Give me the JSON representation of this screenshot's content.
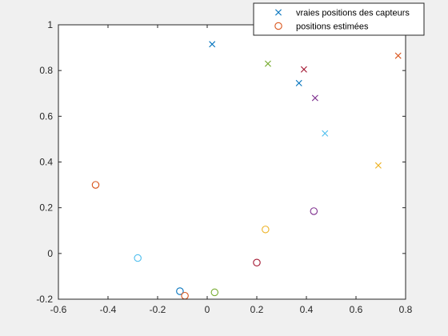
{
  "chart_data": {
    "type": "scatter",
    "title": "",
    "xlabel": "",
    "ylabel": "",
    "xlim": [
      -0.6,
      0.8
    ],
    "ylim": [
      -0.2,
      1
    ],
    "xticks": [
      "-0.6",
      "-0.4",
      "-0.2",
      "0",
      "0.2",
      "0.4",
      "0.6",
      "0.8"
    ],
    "yticks": [
      "-0.2",
      "0",
      "0.2",
      "0.4",
      "0.6",
      "0.8",
      "1"
    ],
    "grid": false,
    "legend_position": "top-right",
    "series": [
      {
        "name": "vraies positions des capteurs",
        "marker": "x",
        "points": [
          {
            "x": 0.02,
            "y": 0.915,
            "color": "#0072bd"
          },
          {
            "x": 0.77,
            "y": 0.865,
            "color": "#d95319"
          },
          {
            "x": 0.69,
            "y": 0.385,
            "color": "#edb120"
          },
          {
            "x": 0.435,
            "y": 0.68,
            "color": "#7e2f8e"
          },
          {
            "x": 0.245,
            "y": 0.83,
            "color": "#77ac30"
          },
          {
            "x": 0.475,
            "y": 0.525,
            "color": "#4dbeee"
          },
          {
            "x": 0.39,
            "y": 0.805,
            "color": "#a2142f"
          },
          {
            "x": 0.37,
            "y": 0.745,
            "color": "#0072bd"
          }
        ]
      },
      {
        "name": "positions estimées",
        "marker": "o",
        "points": [
          {
            "x": -0.11,
            "y": -0.165,
            "color": "#0072bd"
          },
          {
            "x": -0.45,
            "y": 0.3,
            "color": "#d95319"
          },
          {
            "x": 0.235,
            "y": 0.105,
            "color": "#edb120"
          },
          {
            "x": 0.43,
            "y": 0.185,
            "color": "#7e2f8e"
          },
          {
            "x": 0.03,
            "y": -0.17,
            "color": "#77ac30"
          },
          {
            "x": -0.28,
            "y": -0.02,
            "color": "#4dbeee"
          },
          {
            "x": 0.2,
            "y": -0.04,
            "color": "#a2142f"
          },
          {
            "x": -0.09,
            "y": -0.185,
            "color": "#d95319"
          }
        ]
      }
    ],
    "legend_entries": [
      {
        "name": "vraies positions des capteurs",
        "marker": "x",
        "color": "#0072bd"
      },
      {
        "name": "positions estimées",
        "marker": "o",
        "color": "#d95319"
      }
    ]
  }
}
